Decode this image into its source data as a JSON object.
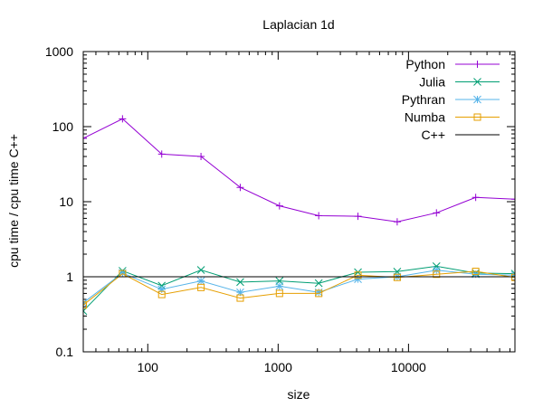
{
  "chart_data": {
    "type": "line",
    "title": "Laplacian 1d",
    "xlabel": "size",
    "ylabel": "cpu time / cpu time C++",
    "xscale": "log",
    "yscale": "log",
    "xlim": [
      32,
      65536
    ],
    "ylim": [
      0.1,
      1000
    ],
    "x_ticks": [
      {
        "value": 100,
        "label": "100"
      },
      {
        "value": 1000,
        "label": "1000"
      },
      {
        "value": 10000,
        "label": "10000"
      }
    ],
    "y_ticks": [
      {
        "value": 0.1,
        "label": "0.1"
      },
      {
        "value": 1,
        "label": "1"
      },
      {
        "value": 10,
        "label": "10"
      },
      {
        "value": 100,
        "label": "100"
      },
      {
        "value": 1000,
        "label": "1000"
      }
    ],
    "grid": false,
    "legend_position": "top-right",
    "x": [
      32,
      64,
      128,
      256,
      512,
      1024,
      2048,
      4096,
      8192,
      16384,
      32768,
      65536
    ],
    "series": [
      {
        "name": "Python",
        "color": "#9400d3",
        "marker": "plus",
        "values": [
          70,
          127,
          43,
          40,
          15.5,
          8.8,
          6.5,
          6.4,
          5.4,
          7.1,
          11.4,
          10.8
        ]
      },
      {
        "name": "Julia",
        "color": "#009e73",
        "marker": "cross",
        "values": [
          0.35,
          1.2,
          0.76,
          1.23,
          0.85,
          0.88,
          0.82,
          1.15,
          1.17,
          1.38,
          1.12,
          1.1
        ]
      },
      {
        "name": "Pythran",
        "color": "#56b4e9",
        "marker": "star",
        "values": [
          0.45,
          1.12,
          0.68,
          0.88,
          0.62,
          0.75,
          0.62,
          0.93,
          1.0,
          1.22,
          1.08,
          1.05
        ]
      },
      {
        "name": "Numba",
        "color": "#e69f00",
        "marker": "box",
        "values": [
          0.42,
          1.1,
          0.58,
          0.72,
          0.52,
          0.6,
          0.6,
          1.05,
          0.98,
          1.08,
          1.18,
          0.98
        ]
      },
      {
        "name": "C++",
        "color": "#000000",
        "marker": "none",
        "values": [
          1,
          1,
          1,
          1,
          1,
          1,
          1,
          1,
          1,
          1,
          1,
          1
        ]
      }
    ]
  }
}
